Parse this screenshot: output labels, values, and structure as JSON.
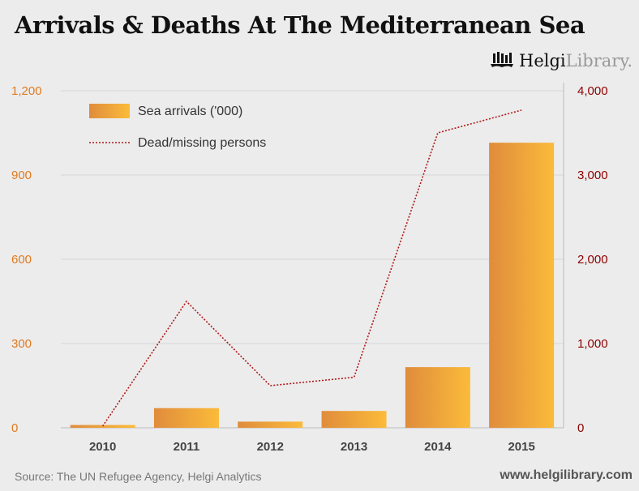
{
  "title": "Arrivals & Deaths At The Mediterranean Sea",
  "logo": {
    "brand": "Helgi",
    "suffix": "Library."
  },
  "source": "Source: The UN Refugee Agency, Helgi Analytics",
  "url": "www.helgilibrary.com",
  "colors": {
    "bar_start": "#e08c3c",
    "bar_end": "#fbbb3a",
    "line": "#b01818",
    "left_axis": "#e07b20",
    "right_axis": "#8b0000"
  },
  "chart_data": {
    "type": "bar",
    "title": "Arrivals & Deaths At The Mediterranean Sea",
    "categories": [
      "2010",
      "2011",
      "2012",
      "2013",
      "2014",
      "2015"
    ],
    "series": [
      {
        "name": "Sea arrivals ('000)",
        "type": "bar",
        "axis": "left",
        "values": [
          10,
          70,
          22,
          60,
          216,
          1015
        ]
      },
      {
        "name": "Dead/missing persons",
        "type": "line",
        "axis": "right",
        "values": [
          20,
          1500,
          500,
          600,
          3500,
          3770
        ]
      }
    ],
    "left_axis": {
      "ylim": [
        0,
        1200
      ],
      "ticks": [
        "0",
        "300",
        "600",
        "900",
        "1,200"
      ],
      "values": [
        0,
        300,
        600,
        900,
        1200
      ]
    },
    "right_axis": {
      "ylim": [
        0,
        4000
      ],
      "ticks": [
        "0",
        "1,000",
        "2,000",
        "3,000",
        "4,000"
      ],
      "values": [
        0,
        1000,
        2000,
        3000,
        4000
      ]
    },
    "legend_position": "top-left",
    "grid": true
  }
}
